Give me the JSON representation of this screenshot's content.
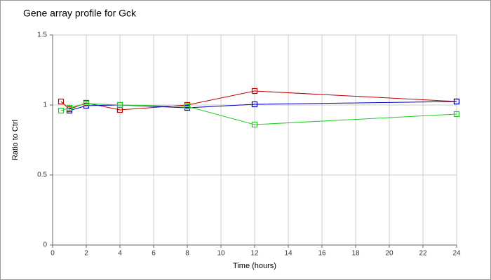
{
  "chart_data": {
    "type": "line",
    "title": "Gene array profile for Gck",
    "x_label": "Time (hours)",
    "y_label": "Ratio to Ctrl",
    "x": [
      0.5,
      1,
      2,
      4,
      8,
      12,
      24
    ],
    "series": [
      {
        "color": "#c00000",
        "values": [
          1.025,
          0.97,
          1.015,
          0.965,
          1.0,
          1.1,
          1.025
        ]
      },
      {
        "color": "#0000c0",
        "values": [
          null,
          0.96,
          0.995,
          1.0,
          0.98,
          1.005,
          1.025
        ]
      },
      {
        "color": "#22cc22",
        "values": [
          0.96,
          0.98,
          1.01,
          1.0,
          0.99,
          0.86,
          0.935
        ]
      }
    ],
    "xlim": [
      0,
      24
    ],
    "xticks": [
      0,
      2,
      4,
      6,
      8,
      10,
      12,
      14,
      16,
      18,
      20,
      22,
      24
    ],
    "ylim": [
      0,
      1.5
    ],
    "yticks": [
      0,
      0.5,
      1,
      1.5
    ],
    "grid": true
  }
}
